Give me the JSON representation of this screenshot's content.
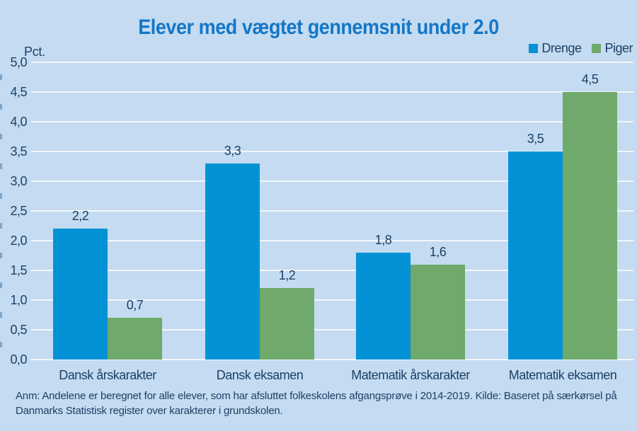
{
  "title": "Elever med vægtet gennemsnit under 2.0",
  "y_axis_unit": "Pct.",
  "legend": {
    "items": [
      {
        "label": "Drenge",
        "color": "#0492d6"
      },
      {
        "label": "Piger",
        "color": "#6fa96b"
      }
    ]
  },
  "note": {
    "line1": "Anm: Andelene er beregnet for alle elever, som har afsluttet folkeskolens afgangsprøve i 2014-2019. Kilde: Baseret på særkørsel på",
    "line2": "Danmarks Statistisk register over karakterer i grundskolen."
  },
  "chart_data": {
    "type": "bar",
    "title": "Elever med vægtet gennemsnit under 2.0",
    "xlabel": "",
    "ylabel": "Pct.",
    "categories": [
      "Dansk årskarakter",
      "Dansk eksamen",
      "Matematik årskarakter",
      "Matematik eksamen"
    ],
    "series": [
      {
        "name": "Drenge",
        "color": "#0492d6",
        "values": [
          2.2,
          3.3,
          1.8,
          3.5
        ],
        "value_labels": [
          "2,2",
          "3,3",
          "1,8",
          "3,5"
        ]
      },
      {
        "name": "Piger",
        "color": "#6fa96b",
        "values": [
          0.7,
          1.2,
          1.6,
          4.5
        ],
        "value_labels": [
          "0,7",
          "1,2",
          "1,6",
          "4,5"
        ]
      }
    ],
    "ylim": [
      0,
      5
    ],
    "ytick_step": 0.5,
    "ytick_labels": [
      "0,0",
      "0,5",
      "1,0",
      "1,5",
      "2,0",
      "2,5",
      "3,0",
      "3,5",
      "4,0",
      "4,5",
      "5,0"
    ],
    "grid": "horizontal",
    "legend_position": "top-right",
    "colors": {
      "background": "#c4dbf1",
      "gridline": "#f2f7fd",
      "text": "#1d4066",
      "title": "#1477c8"
    }
  }
}
